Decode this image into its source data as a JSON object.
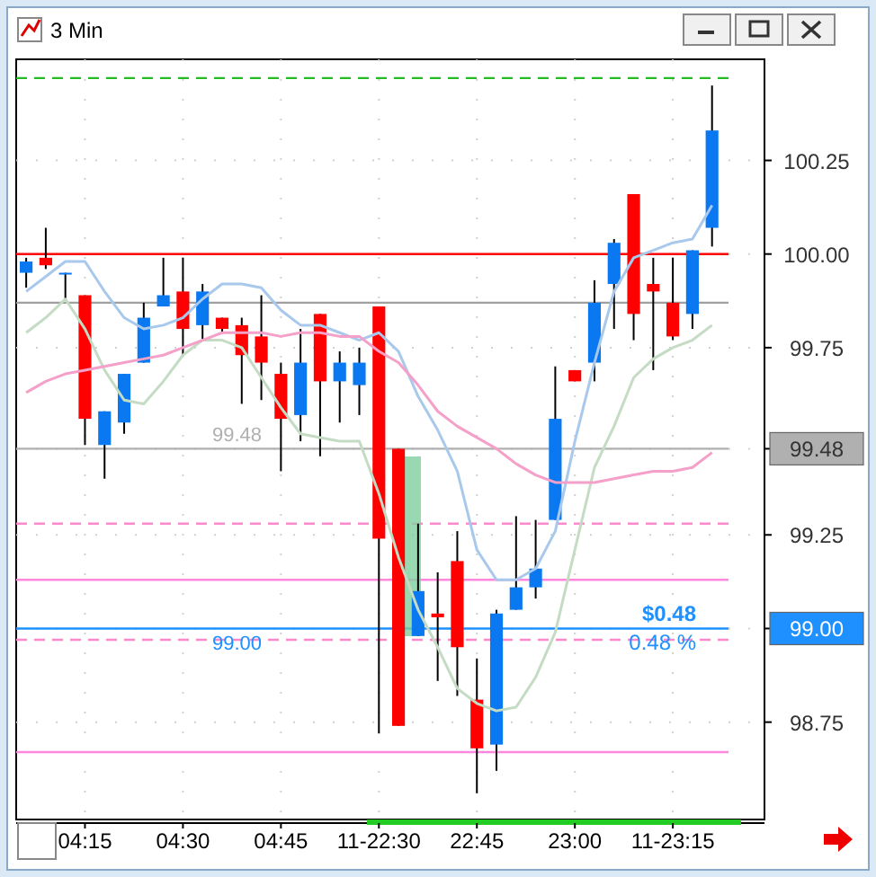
{
  "chart_data": {
    "type": "candlestick",
    "title": "3 Min",
    "categories": [
      null,
      null,
      null,
      "04:15",
      null,
      null,
      null,
      null,
      "04:30",
      null,
      null,
      null,
      null,
      "04:45",
      null,
      null,
      null,
      null,
      "11-22:30",
      null,
      null,
      null,
      null,
      "22:45",
      null,
      null,
      null,
      null,
      "23:00",
      null,
      null,
      null,
      null,
      "11-23:15",
      null,
      null
    ],
    "ohlc": [
      [
        99.95,
        99.99,
        99.91,
        99.98
      ],
      [
        99.99,
        100.07,
        99.96,
        99.97
      ],
      [
        99.95,
        99.95,
        99.88,
        99.95
      ],
      [
        99.89,
        99.89,
        99.49,
        99.56
      ],
      [
        99.49,
        99.58,
        99.4,
        99.58
      ],
      [
        99.55,
        99.68,
        99.52,
        99.68
      ],
      [
        99.71,
        99.87,
        99.71,
        99.83
      ],
      [
        99.86,
        99.99,
        99.86,
        99.89
      ],
      [
        99.9,
        99.99,
        99.73,
        99.8
      ],
      [
        99.81,
        99.92,
        99.77,
        99.9
      ],
      [
        99.83,
        99.83,
        99.79,
        99.8
      ],
      [
        99.81,
        99.83,
        99.6,
        99.73
      ],
      [
        99.78,
        99.89,
        99.61,
        99.71
      ],
      [
        99.68,
        99.71,
        99.42,
        99.56
      ],
      [
        99.57,
        99.8,
        99.5,
        99.71
      ],
      [
        99.84,
        99.84,
        99.46,
        99.66
      ],
      [
        99.66,
        99.74,
        99.55,
        99.71
      ],
      [
        99.65,
        99.75,
        99.57,
        99.71
      ],
      [
        99.86,
        99.86,
        98.72,
        99.24
      ],
      [
        99.48,
        99.48,
        98.74,
        98.74
      ],
      [
        98.98,
        99.28,
        98.98,
        99.1
      ],
      [
        99.04,
        99.15,
        98.86,
        99.03
      ],
      [
        99.18,
        99.26,
        98.82,
        98.95
      ],
      [
        98.81,
        98.92,
        98.56,
        98.68
      ],
      [
        98.69,
        99.05,
        98.62,
        99.04
      ],
      [
        99.05,
        99.3,
        99.05,
        99.11
      ],
      [
        99.11,
        99.29,
        99.08,
        99.16
      ],
      [
        99.29,
        99.7,
        99.29,
        99.56
      ],
      [
        99.69,
        99.69,
        99.66,
        99.66
      ],
      [
        99.71,
        99.93,
        99.66,
        99.87
      ],
      [
        99.92,
        100.04,
        99.8,
        100.03
      ],
      [
        100.16,
        100.16,
        99.77,
        99.84
      ],
      [
        99.92,
        99.99,
        99.69,
        99.9
      ],
      [
        99.87,
        99.99,
        99.77,
        99.78
      ],
      [
        99.84,
        100.01,
        99.8,
        100.01
      ],
      [
        100.07,
        100.45,
        100.02,
        100.33
      ]
    ],
    "colors": [
      "#0a78f0",
      "#ff0000",
      "#0a78f0",
      "#ff0000",
      "#0a78f0",
      "#0a78f0",
      "#0a78f0",
      "#0a78f0",
      "#ff0000",
      "#0a78f0",
      "#ff0000",
      "#ff0000",
      "#ff0000",
      "#ff0000",
      "#0a78f0",
      "#ff0000",
      "#0a78f0",
      "#0a78f0",
      "#ff0000",
      "#ff0000",
      "#0a78f0",
      "#ff0000",
      "#ff0000",
      "#ff0000",
      "#0a78f0",
      "#0a78f0",
      "#0a78f0",
      "#0a78f0",
      "#ff0000",
      "#0a78f0",
      "#0a78f0",
      "#ff0000",
      "#ff0000",
      "#ff0000",
      "#0a78f0",
      "#0a78f0"
    ],
    "series": [
      {
        "type": "line",
        "color": "#a8c8ec",
        "values": [
          99.9,
          99.94,
          99.98,
          99.98,
          99.9,
          99.83,
          99.8,
          99.81,
          99.83,
          99.88,
          99.92,
          99.92,
          99.91,
          99.85,
          99.81,
          99.81,
          99.79,
          99.77,
          99.79,
          99.74,
          99.62,
          99.53,
          99.42,
          99.21,
          99.13,
          99.13,
          99.16,
          99.26,
          99.5,
          99.71,
          99.9,
          99.99,
          100.01,
          100.03,
          100.04,
          100.13
        ]
      },
      {
        "type": "line",
        "color": "#c4dcc4",
        "values": [
          99.79,
          99.83,
          99.88,
          99.8,
          99.69,
          99.61,
          99.6,
          99.66,
          99.73,
          99.77,
          99.77,
          99.75,
          99.67,
          99.59,
          99.52,
          99.51,
          99.5,
          99.5,
          99.36,
          99.19,
          99.05,
          98.95,
          98.84,
          98.8,
          98.78,
          98.79,
          98.87,
          98.99,
          99.21,
          99.43,
          99.54,
          99.67,
          99.72,
          99.75,
          99.77,
          99.81
        ]
      },
      {
        "type": "line",
        "color": "#f4a0c8",
        "values": [
          99.63,
          99.66,
          99.68,
          99.69,
          99.7,
          99.71,
          99.72,
          99.73,
          99.75,
          99.77,
          99.79,
          99.79,
          99.79,
          99.78,
          99.79,
          99.79,
          99.78,
          99.78,
          99.74,
          99.71,
          99.65,
          99.58,
          99.54,
          99.51,
          99.48,
          99.44,
          99.41,
          99.39,
          99.39,
          99.39,
          99.4,
          99.41,
          99.42,
          99.42,
          99.43,
          99.47
        ]
      }
    ],
    "ylim": [
      98.49,
      100.52
    ],
    "yticks": [
      98.75,
      {
        "value": 99.0,
        "label": "99.00"
      },
      99.25,
      99.48,
      99.75,
      {
        "value": 100.0,
        "label": "100.00"
      },
      100.25
    ],
    "grid": true,
    "ref_lines": [
      {
        "axis": "y",
        "value": 100.47,
        "color": "#22bb22",
        "line_style": "dashed"
      },
      {
        "axis": "y",
        "value": 100.0,
        "color": "#ff0000"
      },
      {
        "axis": "y",
        "value": 99.87,
        "color": "#a0a0a0"
      },
      {
        "axis": "y",
        "value": 99.48,
        "label": "99.48",
        "color": "#b0b0b0"
      },
      {
        "axis": "y",
        "value": 99.28,
        "color": "#ff88cc",
        "line_style": "dashed"
      },
      {
        "axis": "y",
        "value": 99.13,
        "color": "#ff88dd"
      },
      {
        "axis": "y",
        "value": 99.0,
        "label": "99.00",
        "color": "#1e90ff"
      },
      {
        "axis": "y",
        "value": 98.97,
        "color": "#ff88cc",
        "line_style": "dashed"
      },
      {
        "axis": "y",
        "value": 98.67,
        "color": "#ff88dd"
      }
    ],
    "annotations": [
      {
        "text": "$0.48",
        "y": 99.0
      },
      {
        "text": "0.48 %",
        "y": 99.0
      }
    ]
  }
}
